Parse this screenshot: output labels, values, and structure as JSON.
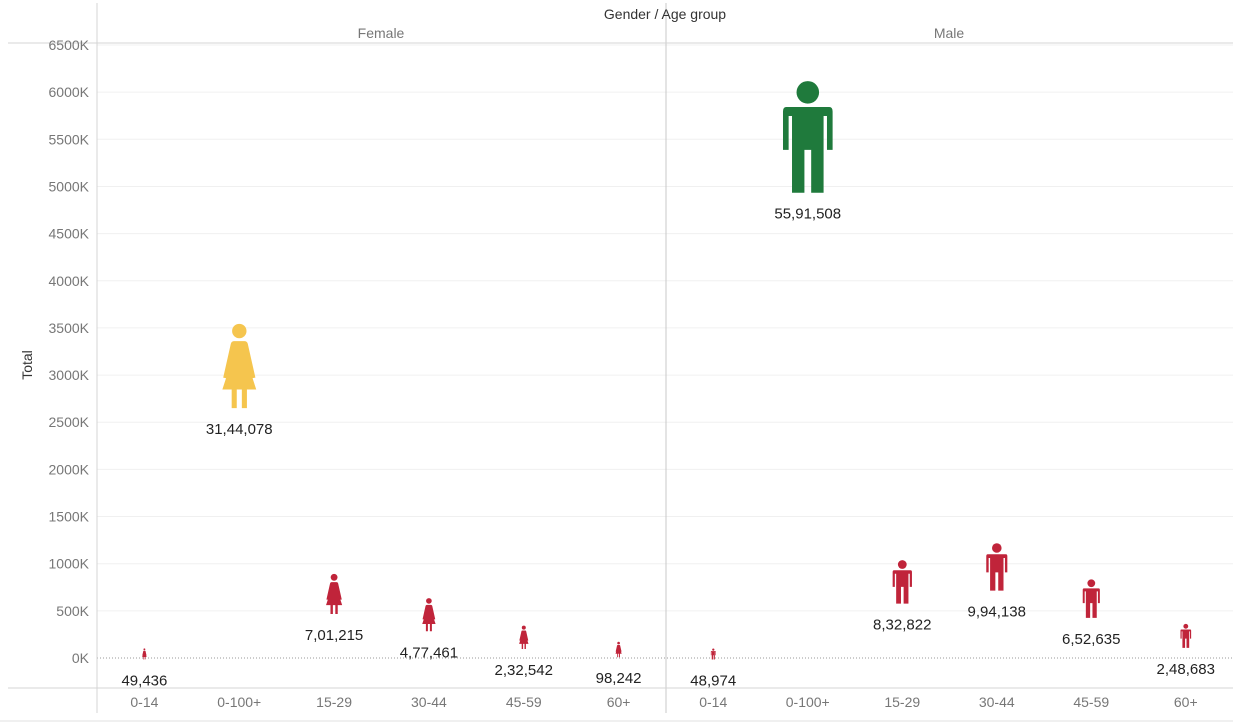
{
  "chart_data": {
    "type": "scatter",
    "mark": "person-icon",
    "header": "Gender / Age group",
    "ylabel": "Total",
    "ylim": [
      0,
      6500000
    ],
    "yticks": [
      {
        "value": 0,
        "label": "0K"
      },
      {
        "value": 500000,
        "label": "500K"
      },
      {
        "value": 1000000,
        "label": "1000K"
      },
      {
        "value": 1500000,
        "label": "1500K"
      },
      {
        "value": 2000000,
        "label": "2000K"
      },
      {
        "value": 2500000,
        "label": "2500K"
      },
      {
        "value": 3000000,
        "label": "3000K"
      },
      {
        "value": 3500000,
        "label": "3500K"
      },
      {
        "value": 4000000,
        "label": "4000K"
      },
      {
        "value": 4500000,
        "label": "4500K"
      },
      {
        "value": 5000000,
        "label": "5000K"
      },
      {
        "value": 5500000,
        "label": "5500K"
      },
      {
        "value": 6000000,
        "label": "6000K"
      },
      {
        "value": 6500000,
        "label": "6500K"
      }
    ],
    "categories": [
      "0-14",
      "0-100+",
      "15-29",
      "30-44",
      "45-59",
      "60+"
    ],
    "colors": {
      "total_female": "#f5c54e",
      "total_male": "#1f7a3c",
      "age_group": "#c0243a"
    },
    "panels": [
      {
        "name": "Female",
        "values": [
          49436,
          3144078,
          701215,
          477461,
          232542,
          98242
        ],
        "labels": [
          "49,436",
          "31,44,078",
          "7,01,215",
          "4,77,461",
          "2,32,542",
          "98,242"
        ]
      },
      {
        "name": "Male",
        "values": [
          48974,
          5591508,
          832822,
          994138,
          652635,
          248683
        ],
        "labels": [
          "48,974",
          "55,91,508",
          "8,32,822",
          "9,94,138",
          "6,52,635",
          "2,48,683"
        ]
      }
    ]
  }
}
